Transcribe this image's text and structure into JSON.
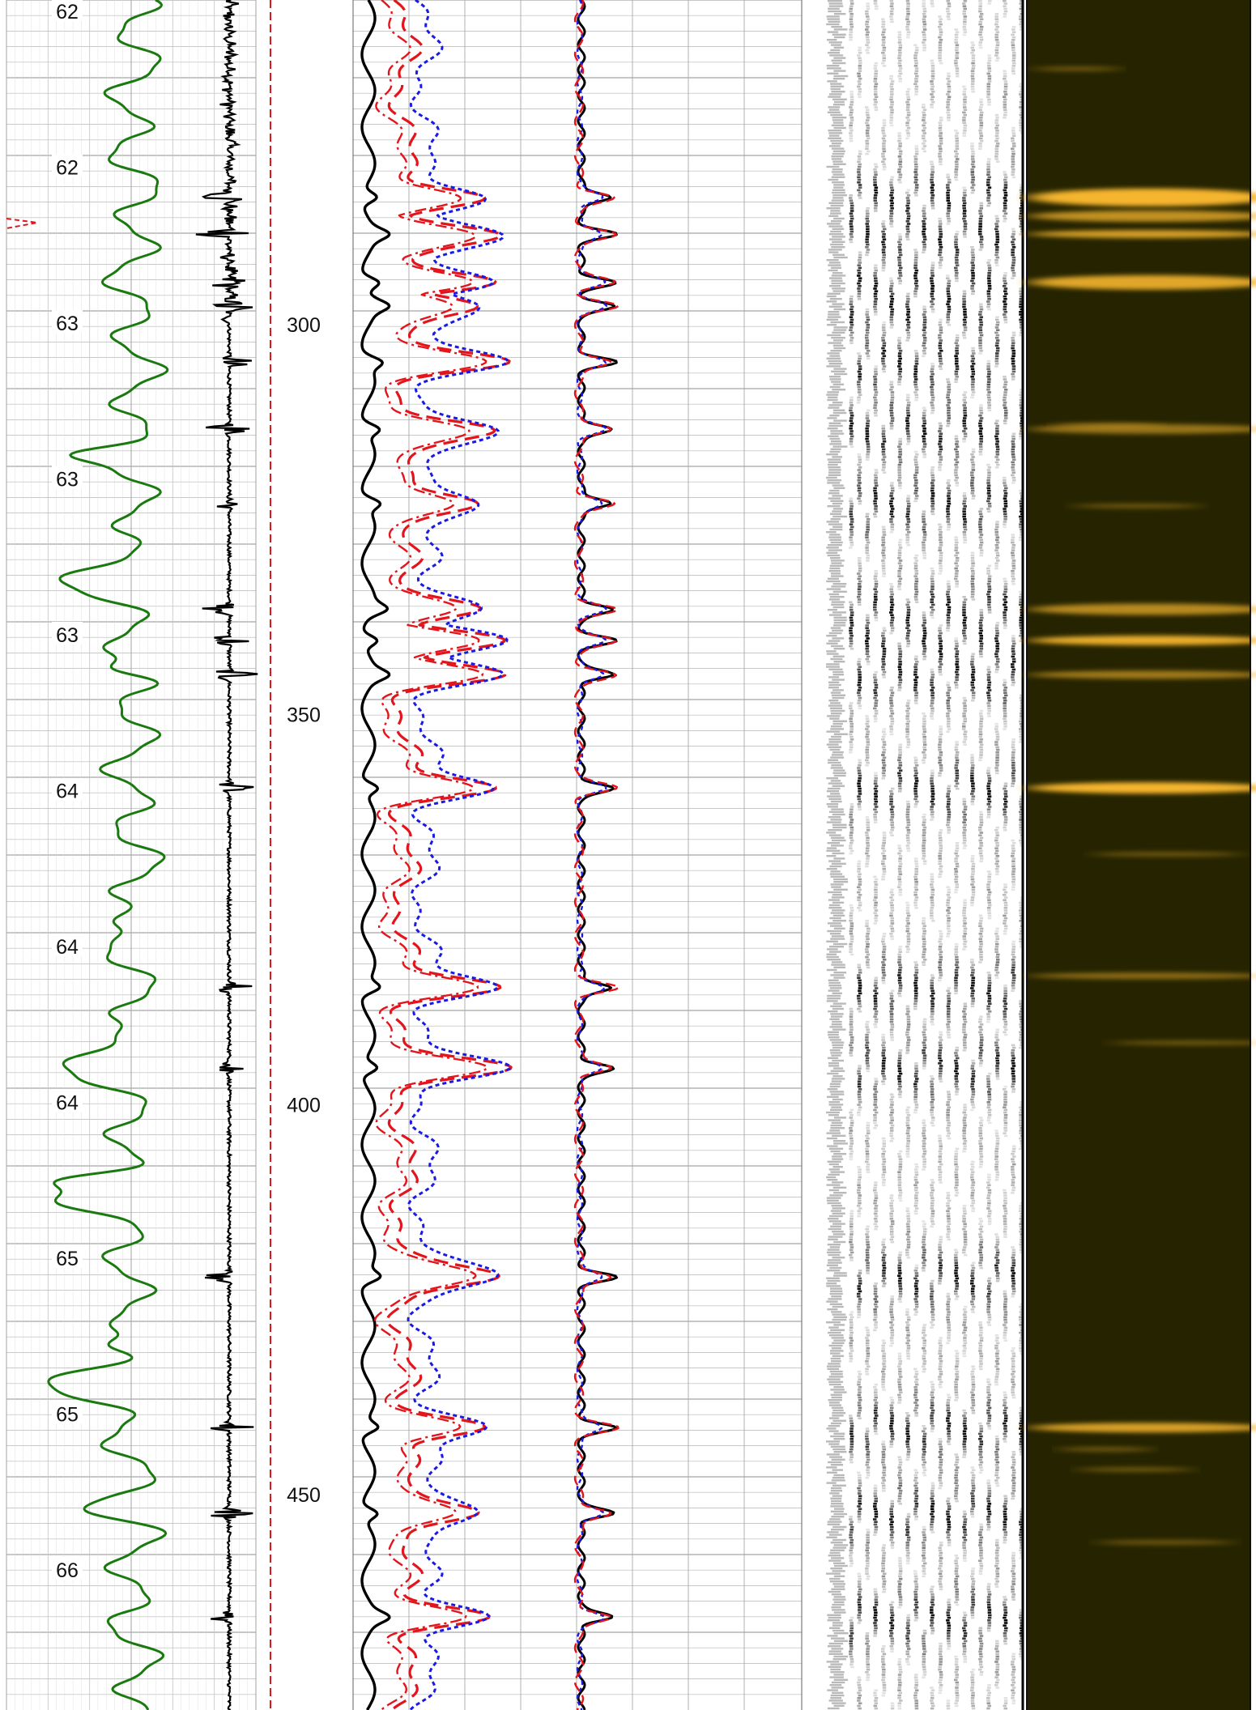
{
  "chart_data": {
    "type": "line",
    "title": "",
    "depth_axis": {
      "tick_labels": [
        "300",
        "350",
        "400",
        "450"
      ],
      "values": [
        300,
        350,
        400,
        450
      ],
      "range": [
        258.4,
        477.6
      ],
      "direction": "downward"
    },
    "track1_labels": [
      "62",
      "62",
      "63",
      "63",
      "63",
      "64",
      "64",
      "64",
      "65",
      "65",
      "66"
    ],
    "colors": {
      "green_curve": "#1a7a10",
      "black_curve": "#000000",
      "red_curve": "#e3141b",
      "blue_curve": "#1a1ae6",
      "image_background": "#262400",
      "image_highlight": "#f5b52e",
      "waveform_grey": "#b9b9b9",
      "grid": "#b5b5b5"
    },
    "tracks": [
      {
        "id": "track1",
        "series": [
          {
            "style": "solid",
            "color": "green"
          },
          {
            "style": "solid",
            "color": "black"
          },
          {
            "style": "dashed",
            "color": "red"
          }
        ]
      },
      {
        "id": "track3",
        "series": [
          {
            "style": "solid",
            "color": "black"
          },
          {
            "style": "dashed",
            "color": "red"
          },
          {
            "style": "dashdot",
            "color": "red"
          },
          {
            "style": "dotted",
            "color": "blue"
          }
        ]
      },
      {
        "id": "track4",
        "series": [
          {
            "style": "solid",
            "color": "black"
          },
          {
            "style": "dotted",
            "color": "blue"
          },
          {
            "style": "dashed",
            "color": "red"
          }
        ]
      },
      {
        "id": "track5",
        "kind": "variable-density waveform"
      },
      {
        "id": "track6",
        "kind": "amplitude image"
      }
    ],
    "event_depths": [
      283.7,
      288.4,
      294.6,
      297.6,
      304.8,
      313.4,
      322.9,
      336.5,
      340.5,
      344.9,
      359.4,
      385.0,
      395.3,
      422.1,
      441.4,
      452.4,
      465.7
    ],
    "bright_band_depths": [
      283.7,
      286.1,
      288.4,
      294.6,
      313.4,
      336.5,
      340.5,
      344.9,
      359.4,
      383.5,
      441.4
    ],
    "grid": true
  }
}
